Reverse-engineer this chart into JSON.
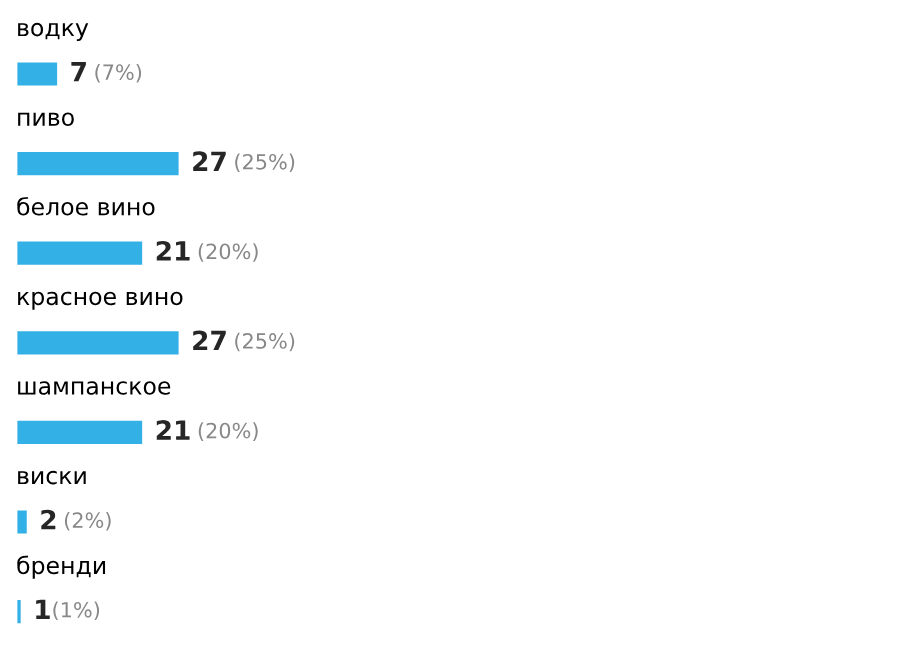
{
  "chart_data": {
    "type": "bar",
    "orientation": "horizontal",
    "categories": [
      "водку",
      "пиво",
      "белое вино",
      "красное вино",
      "шампанское",
      "виски",
      "бренди"
    ],
    "values": [
      7,
      27,
      21,
      27,
      21,
      2,
      1
    ],
    "color": "#33b0e6",
    "value_labels": [
      "7 (7%)",
      "27 (25%)",
      "21 (20%)",
      "27 (25%)",
      "21 (20%)",
      "2 (2%)",
      "1(1%)"
    ]
  }
}
